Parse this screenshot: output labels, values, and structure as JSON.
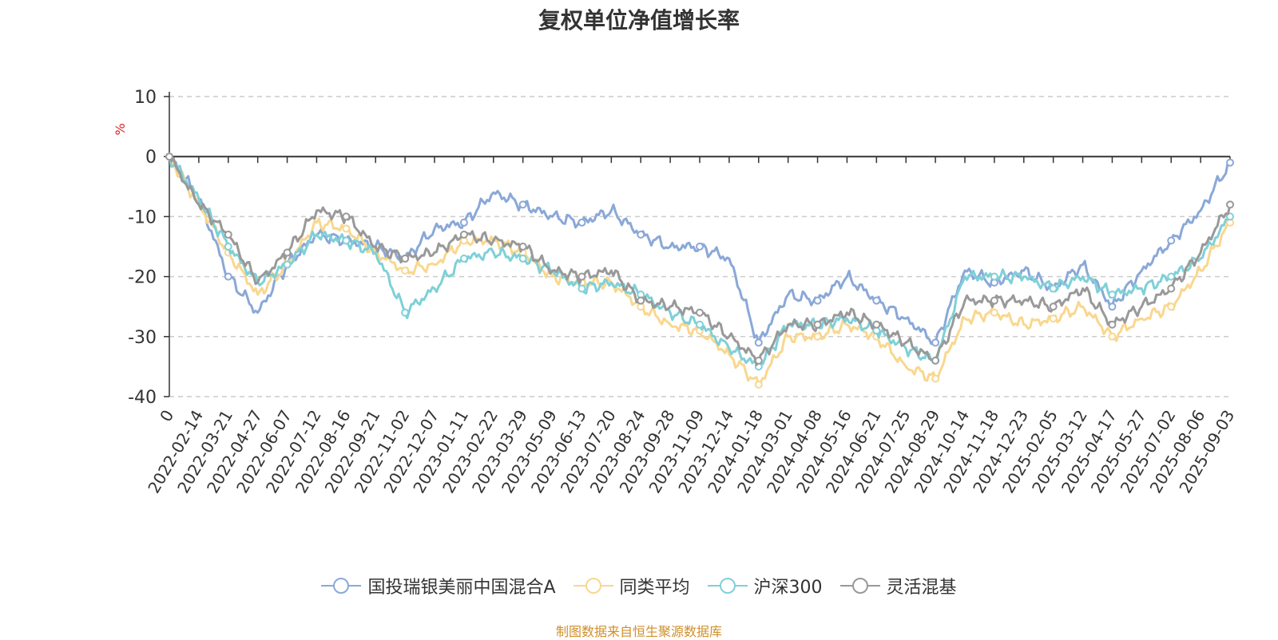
{
  "chart_data": {
    "type": "line",
    "title": "复权单位净值增长率",
    "ylabel": "%",
    "ylim": [
      -40,
      10
    ],
    "yticks": [
      10,
      0,
      -10,
      -20,
      -30,
      -40
    ],
    "x_tick_labels": [
      "0",
      "2022-02-14",
      "2022-03-21",
      "2022-04-27",
      "2022-06-07",
      "2022-07-12",
      "2022-08-16",
      "2022-09-21",
      "2022-11-02",
      "2022-12-07",
      "2023-01-11",
      "2023-02-22",
      "2023-03-29",
      "2023-05-09",
      "2023-06-13",
      "2023-07-20",
      "2023-08-24",
      "2023-09-28",
      "2023-11-09",
      "2023-12-14",
      "2024-01-18",
      "2024-03-01",
      "2024-04-08",
      "2024-05-16",
      "2024-06-21",
      "2024-07-25",
      "2024-08-29",
      "2024-10-14",
      "2024-11-18",
      "2024-12-23",
      "2025-02-05",
      "2025-03-12",
      "2025-04-17",
      "2025-05-27",
      "2025-07-02",
      "2025-08-06",
      "2025-09-03"
    ],
    "grid": "dashed horizontal",
    "legend_position": "bottom",
    "series": [
      {
        "name": "国投瑞银美丽中国混合A",
        "color": "#8aa8d8",
        "values": [
          0,
          -7,
          -20,
          -26,
          -18,
          -13,
          -14,
          -15,
          -17,
          -12,
          -11,
          -6,
          -8,
          -10,
          -11,
          -9,
          -13,
          -15,
          -15,
          -17,
          -31,
          -23,
          -24,
          -20,
          -24,
          -27,
          -31,
          -19,
          -21,
          -19,
          -22,
          -18,
          -25,
          -19,
          -14,
          -9,
          -1
        ]
      },
      {
        "name": "同类平均",
        "color": "#f9d78e",
        "values": [
          0,
          -8,
          -16,
          -23,
          -18,
          -11,
          -12,
          -16,
          -19,
          -18,
          -14,
          -14,
          -16,
          -20,
          -21,
          -21,
          -25,
          -28,
          -29,
          -33,
          -38,
          -30,
          -30,
          -28,
          -30,
          -35,
          -37,
          -27,
          -26,
          -28,
          -27,
          -25,
          -30,
          -27,
          -25,
          -19,
          -11
        ]
      },
      {
        "name": "沪深300",
        "color": "#7fd0d8",
        "values": [
          0,
          -7,
          -15,
          -21,
          -18,
          -13,
          -14,
          -16,
          -26,
          -22,
          -17,
          -16,
          -17,
          -19,
          -22,
          -21,
          -23,
          -26,
          -28,
          -32,
          -35,
          -28,
          -28,
          -27,
          -29,
          -32,
          -34,
          -20,
          -20,
          -20,
          -22,
          -20,
          -23,
          -22,
          -20,
          -17,
          -10
        ]
      },
      {
        "name": "灵活混基",
        "color": "#999999",
        "values": [
          0,
          -8,
          -13,
          -21,
          -16,
          -9,
          -10,
          -15,
          -17,
          -16,
          -13,
          -14,
          -15,
          -19,
          -20,
          -19,
          -24,
          -25,
          -26,
          -30,
          -34,
          -28,
          -28,
          -26,
          -28,
          -31,
          -34,
          -24,
          -24,
          -24,
          -25,
          -22,
          -28,
          -25,
          -22,
          -16,
          -8
        ]
      }
    ]
  },
  "legend": {
    "items": [
      "国投瑞银美丽中国混合A",
      "同类平均",
      "沪深300",
      "灵活混基"
    ]
  },
  "footer": {
    "source": "制图数据来自恒生聚源数据库"
  }
}
